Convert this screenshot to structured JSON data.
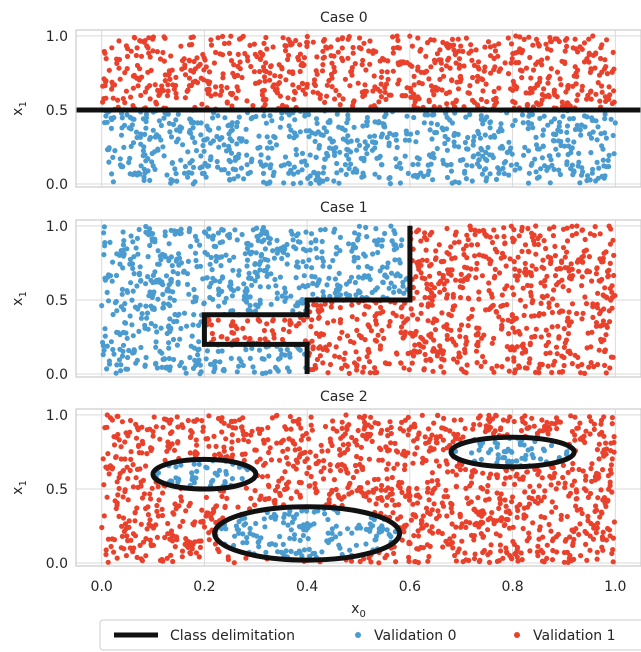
{
  "chart_data": [
    {
      "type": "scatter",
      "title": "Case 0",
      "xlabel": "",
      "ylabel": "x1",
      "ylabel_base": "x",
      "ylabel_sub": "1",
      "xlim": [
        -0.05,
        1.05
      ],
      "ylim": [
        -0.02,
        1.04
      ],
      "yticks": [
        "0.0",
        "0.5",
        "1.0"
      ],
      "ytick_values": [
        0.0,
        0.5,
        1.0
      ],
      "xticks_values": [
        0.0,
        0.2,
        0.4,
        0.6,
        0.8,
        1.0
      ],
      "rule": "y_above_0.5",
      "n_points": 1500,
      "boundary": [
        {
          "kind": "polyline",
          "points": [
            [
              -0.05,
              0.5
            ],
            [
              1.05,
              0.5
            ]
          ]
        }
      ]
    },
    {
      "type": "scatter",
      "title": "Case 1",
      "xlabel": "",
      "ylabel": "x1",
      "ylabel_base": "x",
      "ylabel_sub": "1",
      "xlim": [
        -0.05,
        1.05
      ],
      "ylim": [
        -0.02,
        1.04
      ],
      "yticks": [
        "0.0",
        "0.5",
        "1.0"
      ],
      "ytick_values": [
        0.0,
        0.5,
        1.0
      ],
      "xticks_values": [
        0.0,
        0.2,
        0.4,
        0.6,
        0.8,
        1.0
      ],
      "rule": "staircase",
      "n_points": 1500,
      "boundary": [
        {
          "kind": "polyline",
          "points": [
            [
              0.4,
              0.0
            ],
            [
              0.4,
              0.2
            ],
            [
              0.2,
              0.2
            ],
            [
              0.2,
              0.4
            ],
            [
              0.4,
              0.4
            ],
            [
              0.4,
              0.5
            ],
            [
              0.6,
              0.5
            ],
            [
              0.6,
              1.0
            ]
          ]
        }
      ]
    },
    {
      "type": "scatter",
      "title": "Case 2",
      "xlabel": "x0",
      "xlabel_base": "x",
      "xlabel_sub": "0",
      "ylabel": "x1",
      "ylabel_base": "x",
      "ylabel_sub": "1",
      "xlim": [
        -0.05,
        1.05
      ],
      "ylim": [
        -0.02,
        1.04
      ],
      "yticks": [
        "0.0",
        "0.5",
        "1.0"
      ],
      "ytick_values": [
        0.0,
        0.5,
        1.0
      ],
      "xticks": [
        "0.0",
        "0.2",
        "0.4",
        "0.6",
        "0.8",
        "1.0"
      ],
      "xticks_values": [
        0.0,
        0.2,
        0.4,
        0.6,
        0.8,
        1.0
      ],
      "rule": "inside_ellipses",
      "n_points": 1500,
      "boundary": [
        {
          "kind": "ellipse",
          "cx": 0.2,
          "cy": 0.6,
          "rx": 0.1,
          "ry": 0.1
        },
        {
          "kind": "ellipse",
          "cx": 0.4,
          "cy": 0.2,
          "rx": 0.18,
          "ry": 0.18
        },
        {
          "kind": "ellipse",
          "cx": 0.8,
          "cy": 0.75,
          "rx": 0.12,
          "ry": 0.1
        }
      ]
    }
  ],
  "legend": {
    "placement": "bottom",
    "entries": [
      {
        "label": "Class delimitation",
        "kind": "line",
        "color": "#111111"
      },
      {
        "label": "Validation 0",
        "kind": "dot",
        "color": "#4a9bcf"
      },
      {
        "label": "Validation 1",
        "kind": "dot",
        "color": "#e9412b"
      }
    ]
  },
  "colors": {
    "class0": "#4a9bcf",
    "class1": "#e9412b",
    "boundary": "#111111"
  }
}
